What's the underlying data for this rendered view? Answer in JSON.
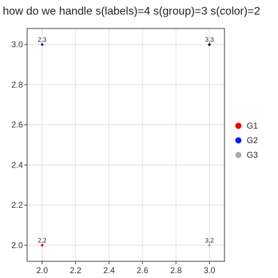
{
  "chart_data": {
    "type": "scatter",
    "title": "how do we handle s(labels)=4 s(group)=3 s(color)=2",
    "xlabel": "",
    "ylabel": "",
    "xlim": [
      1.91,
      3.09
    ],
    "ylim": [
      1.92,
      3.08
    ],
    "xticks": [
      "2.0",
      "2.2",
      "2.4",
      "2.6",
      "2.8",
      "3.0"
    ],
    "yticks": [
      "2.0",
      "2.2",
      "2.4",
      "2.6",
      "2.8",
      "3.0"
    ],
    "grid": true,
    "legend_position": "right",
    "points": [
      {
        "x": 2,
        "y": 2,
        "label": "2,2",
        "group": "G1",
        "color": "#ee0000"
      },
      {
        "x": 2,
        "y": 3,
        "label": "2,3",
        "group": "G2",
        "color": "#0022ee"
      },
      {
        "x": 3,
        "y": 3,
        "label": "3,3",
        "group": "G3",
        "color": "#000000"
      },
      {
        "x": 3,
        "y": 2,
        "label": "3,2",
        "group": "G3",
        "color": "#aaaaaa"
      }
    ],
    "legend": [
      {
        "name": "G1",
        "color": "#ee0000"
      },
      {
        "name": "G2",
        "color": "#0022ee"
      },
      {
        "name": "G3",
        "color": "#aaaaaa"
      }
    ]
  }
}
